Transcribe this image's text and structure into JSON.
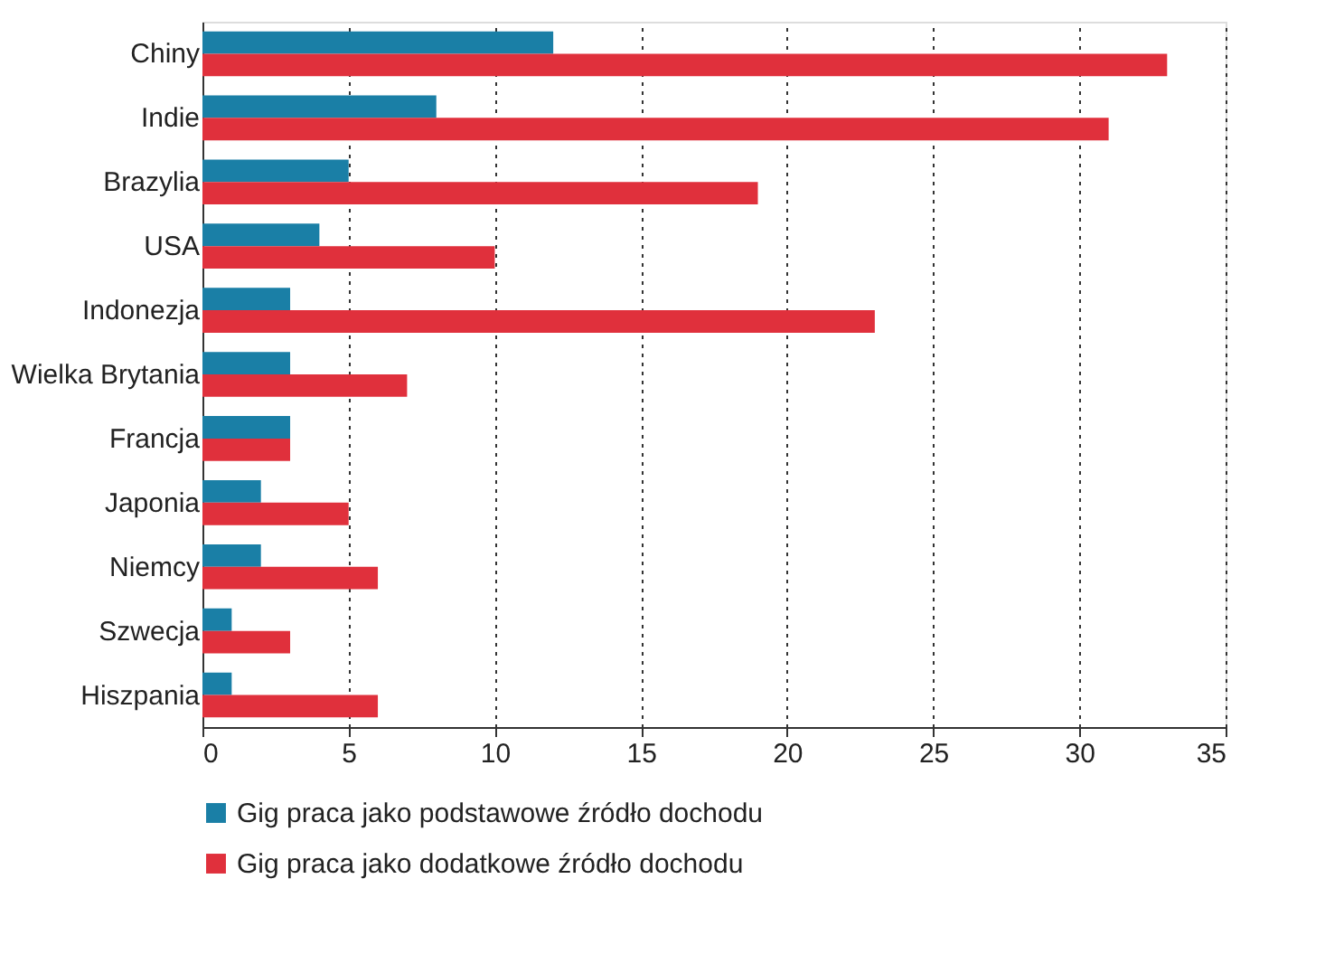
{
  "chart_data": {
    "type": "bar",
    "orientation": "horizontal",
    "categories": [
      "Chiny",
      "Indie",
      "Brazylia",
      "USA",
      "Indonezja",
      "Wielka Brytania",
      "Francja",
      "Japonia",
      "Niemcy",
      "Szwecja",
      "Hiszpania"
    ],
    "series": [
      {
        "name": "Gig praca jako podstawowe źródło dochodu",
        "color": "#1a7fa6",
        "values": [
          12,
          8,
          5,
          4,
          3,
          3,
          3,
          2,
          2,
          1,
          1
        ]
      },
      {
        "name": "Gig praca jako dodatkowe źródło dochodu",
        "color": "#e0303c",
        "values": [
          33,
          31,
          19,
          10,
          23,
          7,
          3,
          5,
          6,
          3,
          6
        ]
      }
    ],
    "xlim": [
      0,
      35
    ],
    "xticks": [
      0,
      5,
      10,
      15,
      20,
      25,
      30,
      35
    ],
    "grid": "x",
    "line_style": "dotted",
    "legend": "bottom"
  }
}
